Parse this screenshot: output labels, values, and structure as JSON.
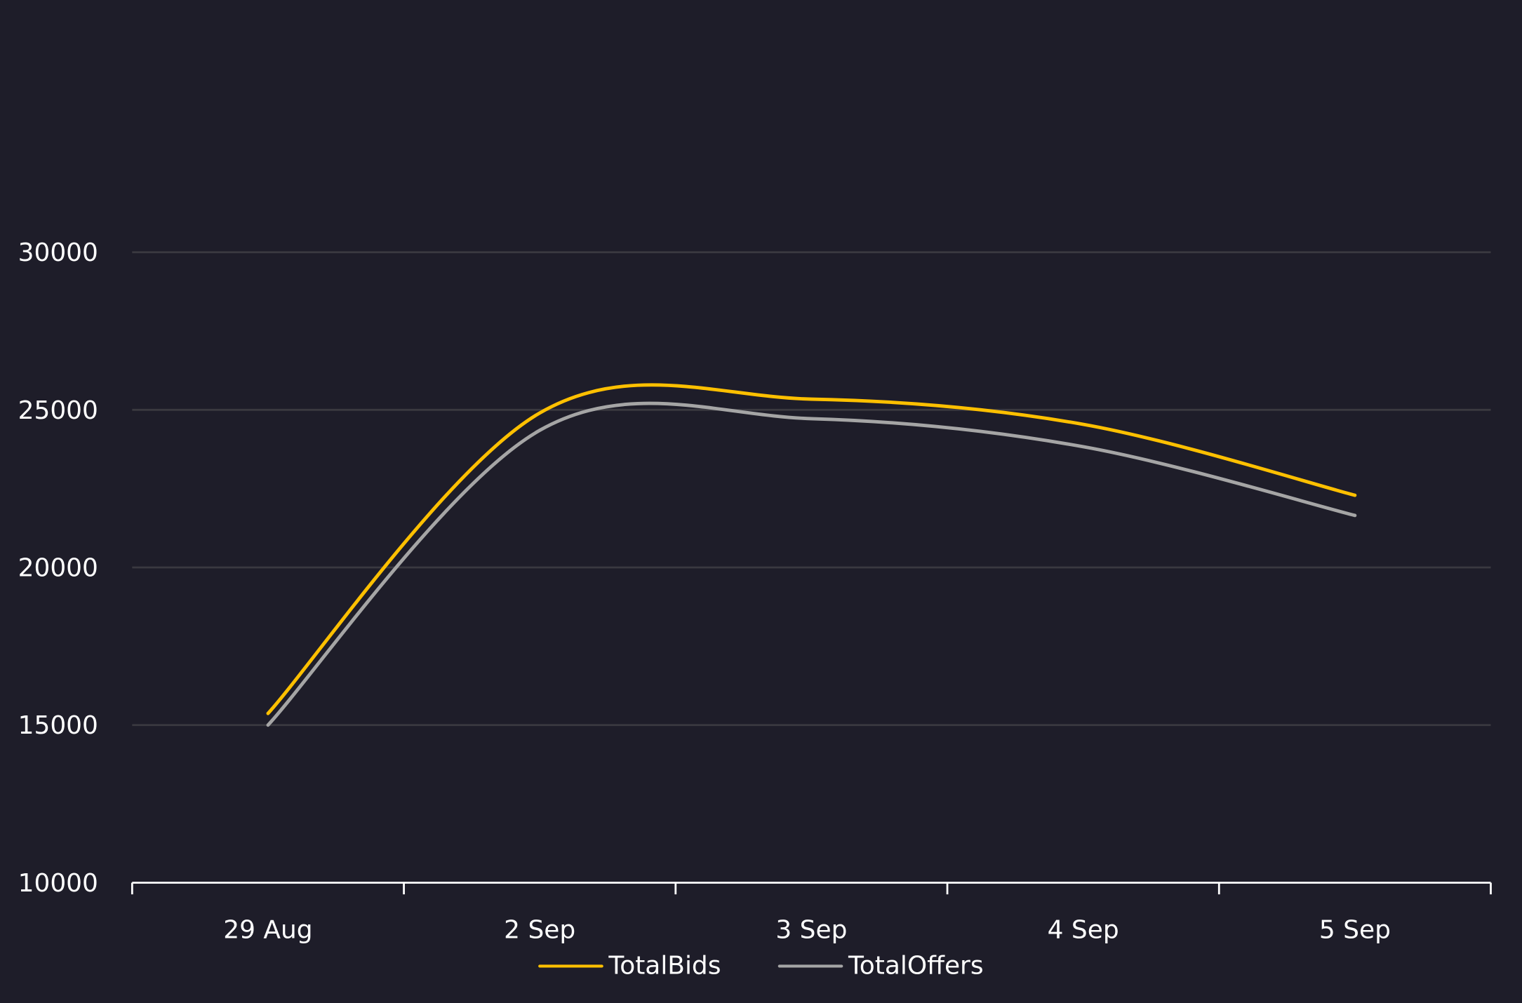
{
  "colors": {
    "background": "#1e1d29",
    "TotalBids": "#ffc000",
    "TotalOffers": "#a5a5a5",
    "grid": "#3a3940",
    "axis": "#ffffff"
  },
  "chart_data": {
    "type": "line",
    "title": "",
    "xlabel": "",
    "ylabel": "",
    "categories": [
      "29 Aug",
      "2 Sep",
      "3 Sep",
      "4 Sep",
      "5 Sep"
    ],
    "yticks": [
      "10000",
      "15000",
      "20000",
      "25000",
      "30000"
    ],
    "ylim": [
      10000,
      30000
    ],
    "grid": true,
    "smooth": true,
    "legend": "bottom-center",
    "series": [
      {
        "name": "TotalBids",
        "values": [
          15370,
          24900,
          25340,
          24540,
          22290
        ]
      },
      {
        "name": "TotalOffers",
        "values": [
          15000,
          24350,
          24720,
          23830,
          21650
        ]
      }
    ]
  }
}
